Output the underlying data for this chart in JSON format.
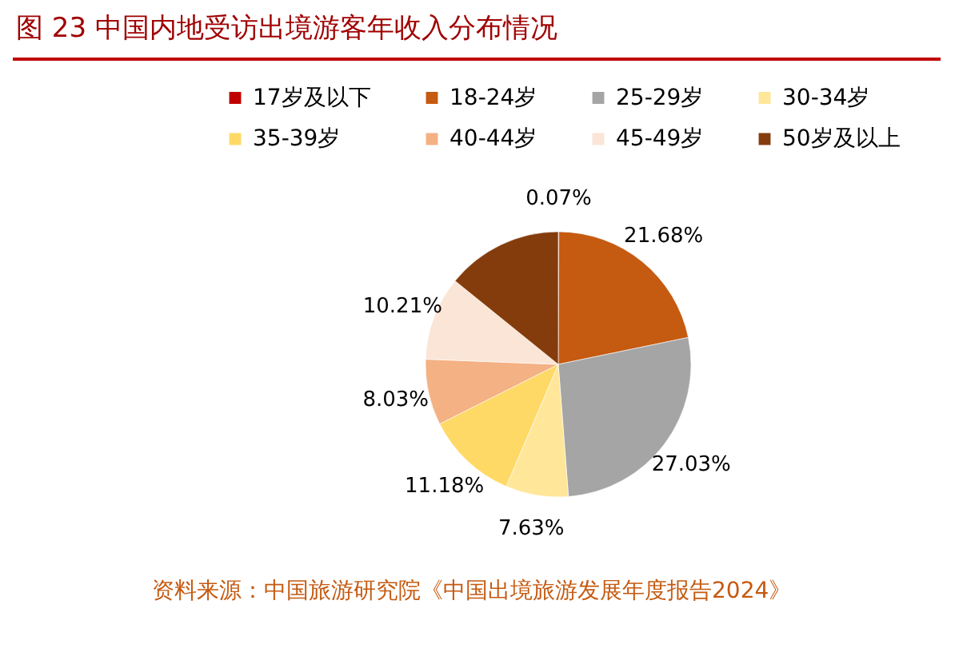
{
  "chart_data": {
    "type": "pie",
    "title": "图 23   中国内地受访出境游客年收入分布情况",
    "categories": [
      "17岁及以下",
      "18-24岁",
      "25-29岁",
      "30-34岁",
      "35-39岁",
      "40-44岁",
      "45-49岁",
      "50岁及以上"
    ],
    "values": [
      0.07,
      21.68,
      27.03,
      7.63,
      11.18,
      8.03,
      10.21,
      14.17
    ],
    "value_labels": [
      "0.07%",
      "21.68%",
      "27.03%",
      "7.63%",
      "11.18%",
      "8.03%",
      "10.21%",
      null
    ],
    "colors": [
      "#c00000",
      "#c55a11",
      "#a5a5a5",
      "#ffe699",
      "#ffd966",
      "#f4b183",
      "#fbe5d6",
      "#843c0c"
    ],
    "legend": "top",
    "annotations": [
      "资料来源：中国旅游研究院《中国出境旅游发展年度报告2024》"
    ]
  }
}
